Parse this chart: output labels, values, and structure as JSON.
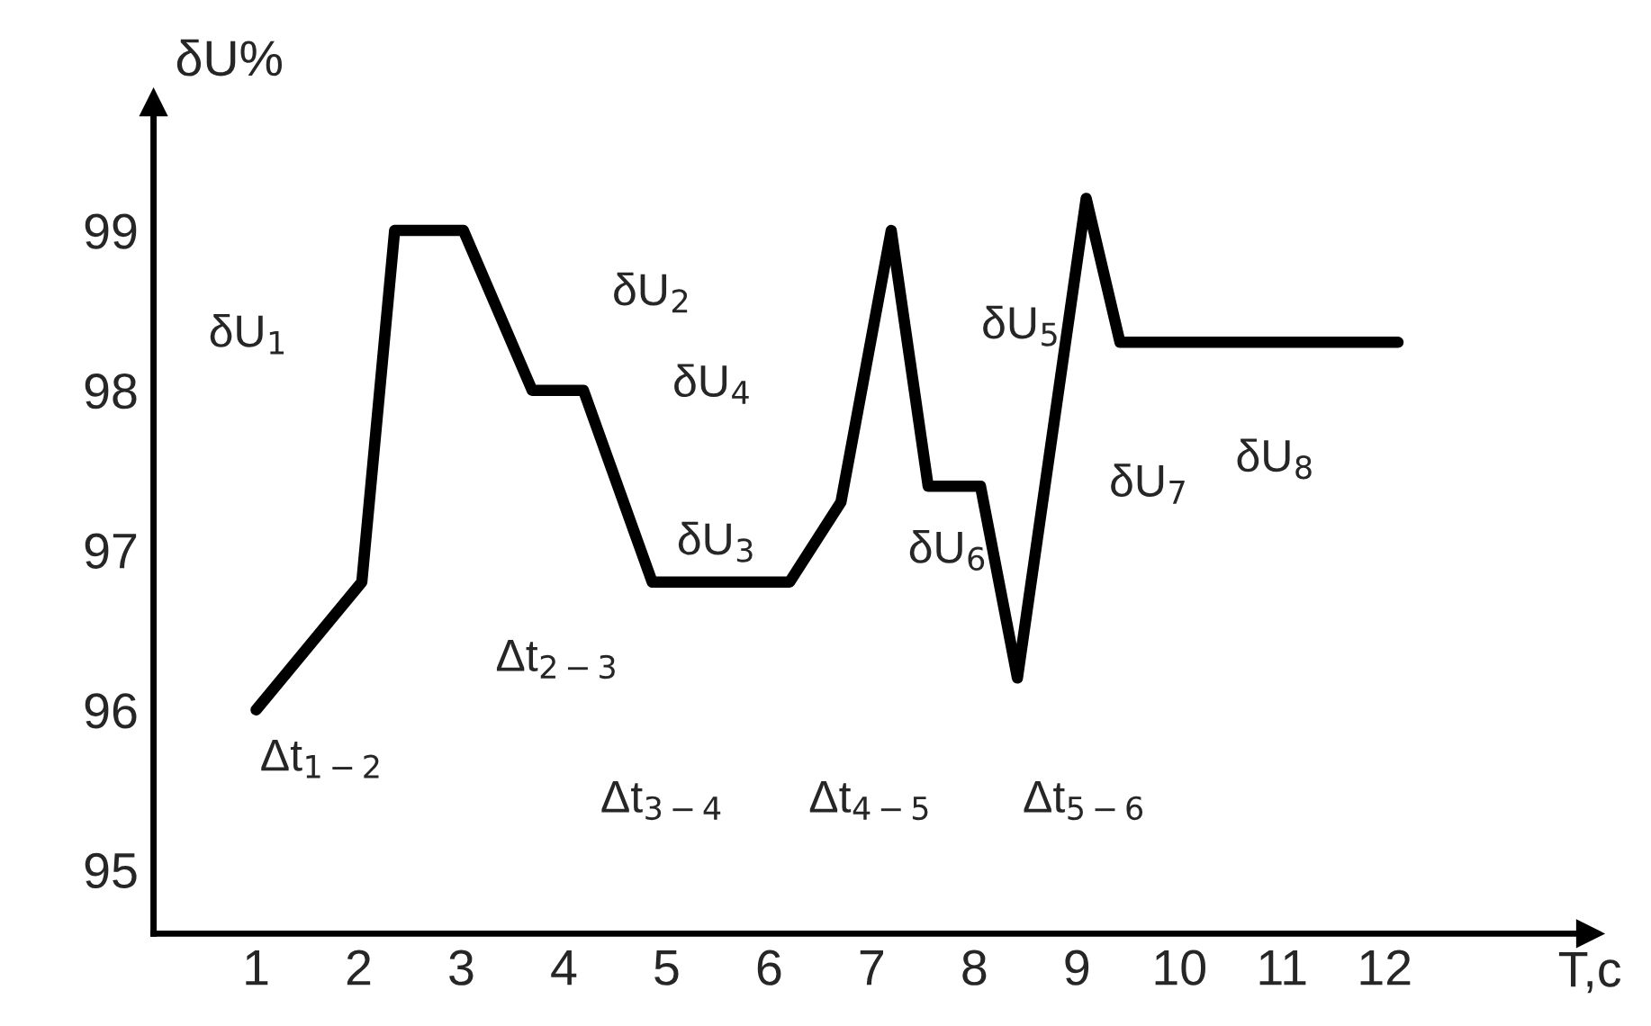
{
  "chart_data": {
    "type": "line",
    "xlabel": "T,c",
    "ylabel": "δU%",
    "x": [
      1,
      2.03,
      2.35,
      3.02,
      3.69,
      4.19,
      4.86,
      6.2,
      6.7,
      7.19,
      7.55,
      8.06,
      8.42,
      9.09,
      9.42,
      12.13
    ],
    "series": [
      {
        "color": "#000000",
        "values": [
          96,
          96.8,
          99,
          99,
          98,
          98,
          96.8,
          96.8,
          97.3,
          99,
          97.4,
          97.4,
          96.2,
          99.2,
          98.3,
          98.3
        ]
      }
    ],
    "xlim": [
      0,
      14
    ],
    "ylim": [
      94.6,
      99.8
    ],
    "xticks": [
      1,
      2,
      3,
      4,
      5,
      6,
      7,
      8,
      9,
      10,
      11,
      12
    ],
    "yticks": [
      95,
      96,
      97,
      98,
      99
    ],
    "grid": false,
    "legend": false,
    "marker": "none",
    "line_style": "solid",
    "annotations": [
      "δU$_{1}$",
      "δU$_{2}$",
      "δU$_{3}$",
      "δU$_{4}$",
      "δU$_{5}$",
      "δU$_{6}$",
      "δU$_{7}$",
      "δU$_{8}$",
      "Δt$_{1−2}$",
      "Δt$_{2−3}$",
      "Δt$_{3−4}$",
      "Δt$_{4−5}$",
      "Δt$_{5−6}$"
    ]
  }
}
